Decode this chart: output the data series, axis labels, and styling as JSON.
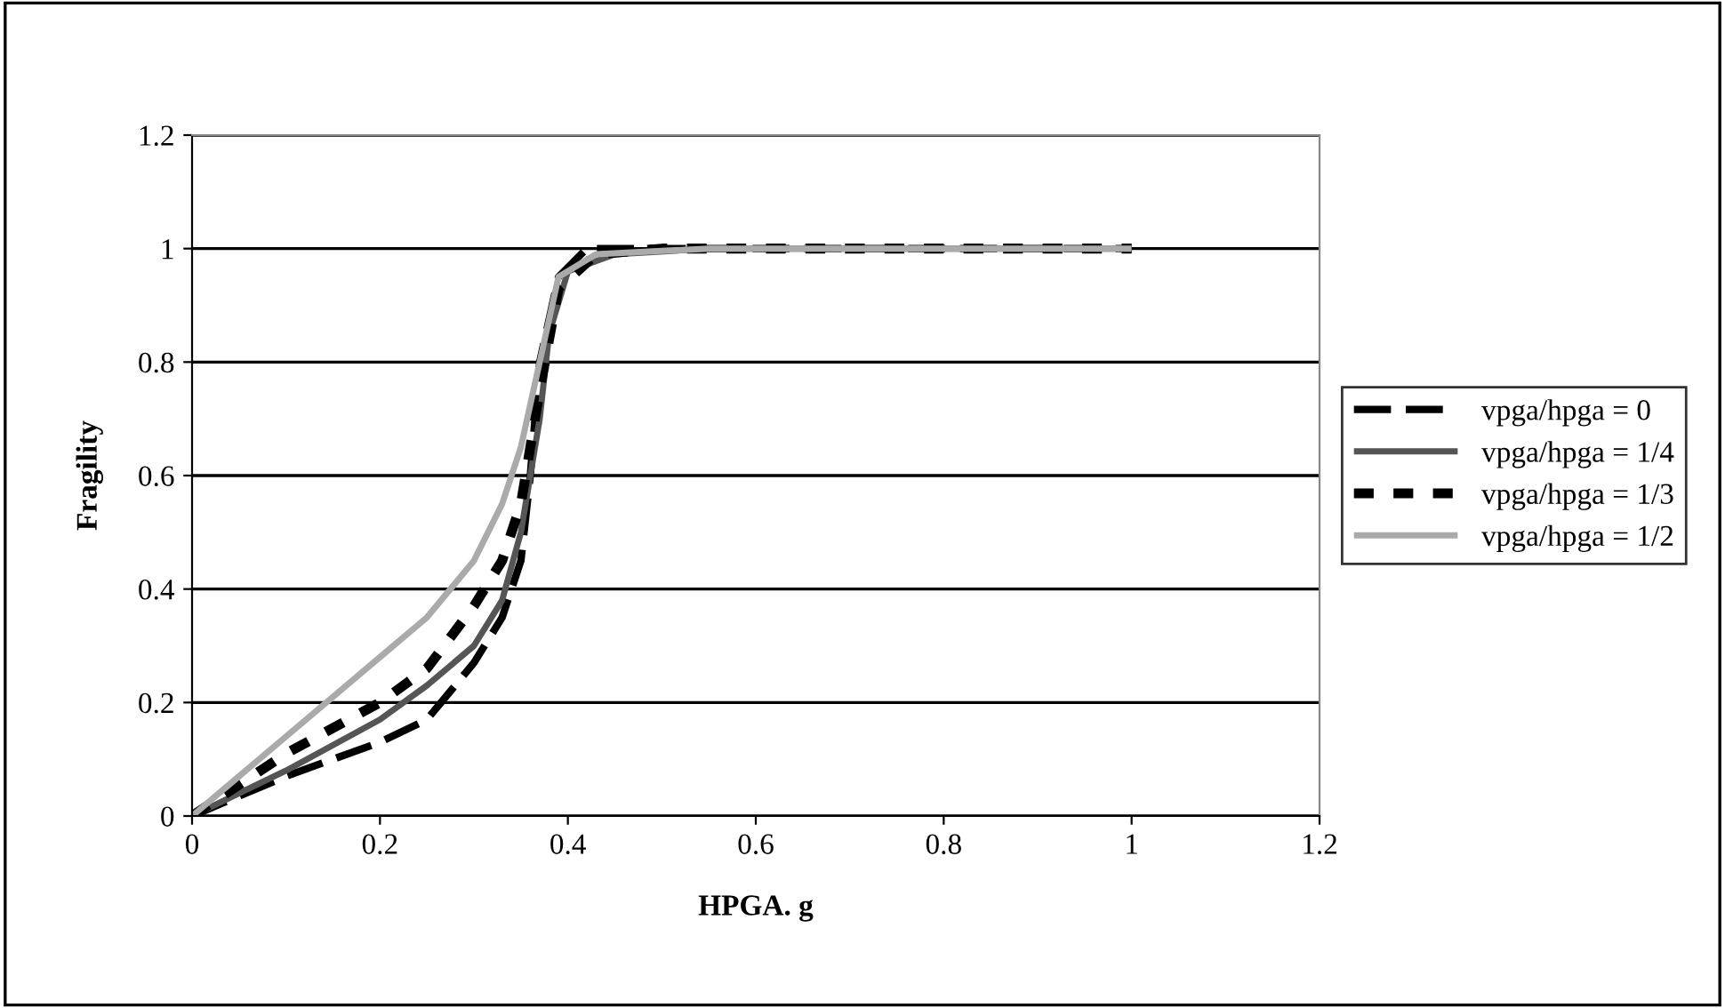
{
  "chart_data": {
    "type": "line",
    "xlabel": "HPGA. g",
    "ylabel": "Fragility",
    "xlim": [
      0,
      1.2
    ],
    "ylim": [
      0,
      1.2
    ],
    "xticks": [
      0,
      0.2,
      0.4,
      0.6,
      0.8,
      1,
      1.2
    ],
    "yticks": [
      0,
      0.2,
      0.4,
      0.6,
      0.8,
      1,
      1.2
    ],
    "grid": "y",
    "legend": "right",
    "marker": "none",
    "series": [
      {
        "name": "vpga/hpga = 0",
        "color": "#000000",
        "line_style": "dashed",
        "x": [
          0,
          0.1,
          0.2,
          0.25,
          0.3,
          0.33,
          0.35,
          0.36,
          0.37,
          0.39,
          0.42,
          0.5,
          1.0
        ],
        "values": [
          0,
          0.07,
          0.13,
          0.17,
          0.27,
          0.35,
          0.45,
          0.6,
          0.8,
          0.95,
          1.0,
          1.0,
          1.0
        ]
      },
      {
        "name": "vpga/hpga = 1/4",
        "color": "#555555",
        "line_style": "solid",
        "x": [
          0,
          0.1,
          0.2,
          0.25,
          0.3,
          0.33,
          0.35,
          0.37,
          0.38,
          0.4,
          0.45,
          0.55,
          1.0
        ],
        "values": [
          0,
          0.08,
          0.17,
          0.23,
          0.3,
          0.38,
          0.5,
          0.7,
          0.85,
          0.96,
          0.99,
          1.0,
          1.0
        ]
      },
      {
        "name": "vpga/hpga = 1/3",
        "color": "#000000",
        "line_style": "dotted",
        "x": [
          0,
          0.1,
          0.2,
          0.25,
          0.3,
          0.33,
          0.35,
          0.37,
          0.39,
          0.43,
          0.5,
          1.0
        ],
        "values": [
          0,
          0.11,
          0.2,
          0.26,
          0.37,
          0.45,
          0.55,
          0.75,
          0.93,
          0.99,
          1.0,
          1.0
        ]
      },
      {
        "name": "vpga/hpga = 1/2",
        "color": "#aaaaaa",
        "line_style": "solid",
        "x": [
          0,
          0.1,
          0.2,
          0.25,
          0.3,
          0.33,
          0.35,
          0.37,
          0.39,
          0.43,
          0.55,
          1.0
        ],
        "values": [
          0,
          0.14,
          0.28,
          0.35,
          0.45,
          0.55,
          0.65,
          0.8,
          0.95,
          0.99,
          1.0,
          1.0
        ]
      }
    ]
  }
}
